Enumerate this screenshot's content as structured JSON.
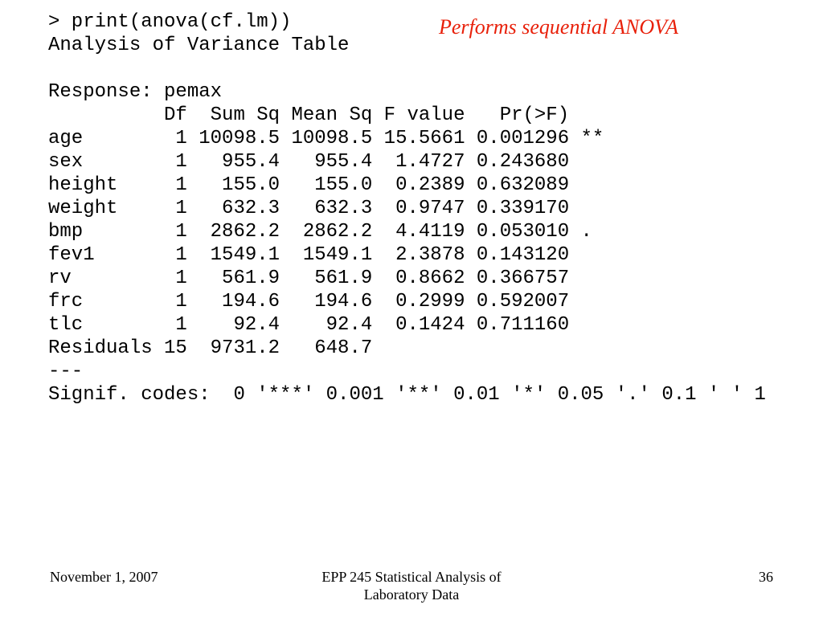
{
  "annotation": {
    "text": "Performs sequential ANOVA",
    "color": "#e8200a"
  },
  "console": {
    "lines": [
      "> print(anova(cf.lm))",
      "Analysis of Variance Table",
      "",
      "Response: pemax",
      "          Df  Sum Sq Mean Sq F value   Pr(>F)",
      "age        1 10098.5 10098.5 15.5661 0.001296 **",
      "sex        1   955.4   955.4  1.4727 0.243680",
      "height     1   155.0   155.0  0.2389 0.632089",
      "weight     1   632.3   632.3  0.9747 0.339170",
      "bmp        1  2862.2  2862.2  4.4119 0.053010 .",
      "fev1       1  1549.1  1549.1  2.3878 0.143120",
      "rv         1   561.9   561.9  0.8662 0.366757",
      "frc        1   194.6   194.6  0.2999 0.592007",
      "tlc        1    92.4    92.4  0.1424 0.711160",
      "Residuals 15  9731.2   648.7",
      "---",
      "Signif. codes:  0 '***' 0.001 '**' 0.01 '*' 0.05 '.' 0.1 ' ' 1"
    ]
  },
  "footer": {
    "date": "November 1, 2007",
    "course_title": "EPP 245 Statistical Analysis of Laboratory Data",
    "page_number": "36"
  }
}
